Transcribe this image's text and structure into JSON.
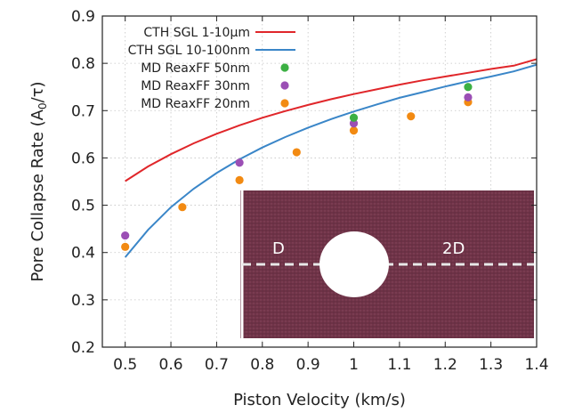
{
  "chart_data": {
    "type": "scatter",
    "title": "",
    "xlabel": "Piston Velocity (km/s)",
    "ylabel_main": "Pore Collapse Rate (A",
    "ylabel_sub": "0",
    "ylabel_tail": "/τ)",
    "xlim": [
      0.45,
      1.4
    ],
    "ylim": [
      0.2,
      0.9
    ],
    "x_ticks": [
      0.5,
      0.6,
      0.7,
      0.8,
      0.9,
      1.0,
      1.1,
      1.2,
      1.3,
      1.4
    ],
    "x_tick_labels": [
      "0.5",
      "0.6",
      "0.7",
      "0.8",
      "0.9",
      "1",
      "1.1",
      "1.2",
      "1.3",
      "1.4"
    ],
    "y_ticks": [
      0.2,
      0.3,
      0.4,
      0.5,
      0.6,
      0.7,
      0.8,
      0.9
    ],
    "y_tick_labels": [
      "0.2",
      "0.3",
      "0.4",
      "0.5",
      "0.6",
      "0.7",
      "0.8",
      "0.9"
    ],
    "grid": true,
    "legend_position": "top-left",
    "curves": [
      {
        "name": "CTH SGL 1-10μm",
        "color": "#e0262a",
        "x": [
          0.5,
          0.55,
          0.6,
          0.65,
          0.7,
          0.75,
          0.8,
          0.85,
          0.9,
          0.95,
          1.0,
          1.05,
          1.1,
          1.15,
          1.2,
          1.25,
          1.3,
          1.35,
          1.4
        ],
        "y": [
          0.551,
          0.582,
          0.608,
          0.631,
          0.651,
          0.669,
          0.685,
          0.699,
          0.712,
          0.724,
          0.735,
          0.745,
          0.755,
          0.764,
          0.772,
          0.78,
          0.788,
          0.795,
          0.809
        ]
      },
      {
        "name": "CTH SGL 10-100nm",
        "color": "#3a86c8",
        "x": [
          0.5,
          0.55,
          0.6,
          0.65,
          0.7,
          0.75,
          0.8,
          0.85,
          0.9,
          0.95,
          1.0,
          1.05,
          1.1,
          1.15,
          1.2,
          1.25,
          1.3,
          1.35,
          1.4
        ],
        "y": [
          0.39,
          0.448,
          0.496,
          0.535,
          0.568,
          0.597,
          0.622,
          0.644,
          0.664,
          0.682,
          0.698,
          0.713,
          0.727,
          0.739,
          0.751,
          0.762,
          0.772,
          0.783,
          0.797
        ]
      }
    ],
    "series": [
      {
        "name": "MD ReaxFF 50nm",
        "color": "#3cb043",
        "x": [
          1.0,
          1.25
        ],
        "y": [
          0.685,
          0.75
        ]
      },
      {
        "name": "MD ReaxFF 30nm",
        "color": "#9b4fb5",
        "x": [
          0.5,
          0.75,
          1.0,
          1.25
        ],
        "y": [
          0.436,
          0.59,
          0.673,
          0.728
        ]
      },
      {
        "name": "MD ReaxFF 20nm",
        "color": "#f28a12",
        "x": [
          0.5,
          0.625,
          0.75,
          0.875,
          1.0,
          1.125,
          1.25
        ],
        "y": [
          0.412,
          0.496,
          0.553,
          0.612,
          0.658,
          0.688,
          0.718
        ]
      }
    ],
    "inset": {
      "left_label": "D",
      "right_label": "2D",
      "background_color": "#6e3246",
      "pore_color": "#ffffff",
      "dashed_line_color": "#e8e8e8"
    }
  }
}
